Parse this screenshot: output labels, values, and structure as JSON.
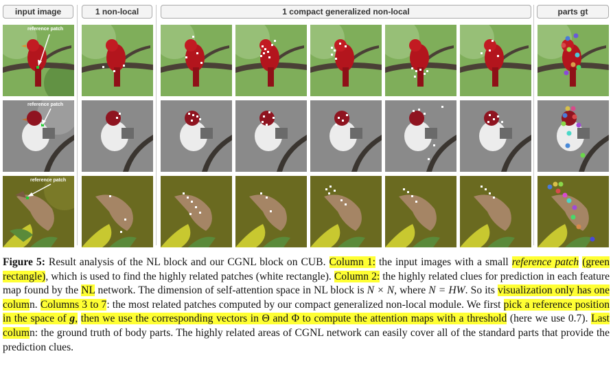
{
  "headers": {
    "input_image": "input image",
    "non_local": "1 non-local",
    "cgnl": "1 compact generalized non-local",
    "parts_gt": "parts gt"
  },
  "annotations": {
    "reference_patch": "reference patch"
  },
  "caption": {
    "figure_label": "Figure 5:",
    "s1": " Result analysis of the NL block and our CGNL block on CUB. ",
    "col1": "Column 1:",
    "s2": " the input images with a small ",
    "ref_patch": "reference patch",
    "s3": " ",
    "green_rect": "(green rectangle)",
    "s4": ", which is used to find the highly related patches (white rectangle). ",
    "col2": "Column 2:",
    "s5": " the highly related clues for prediction in each feature map found by the ",
    "nl": "NL",
    "s6": " network. The dimension of self-attention space in NL block is ",
    "nxn": "N × N",
    "s7": ", where ",
    "nhw": "N = HW",
    "s8": ". So its ",
    "vis_one": "visualization only has one colum",
    "s9": "n. ",
    "cols37": "Columns 3 to 7",
    "s10": ": the most related patches computed by our compact generalized non-local module. We first ",
    "pick": "pick a reference position in the space of ",
    "g": "g",
    "comma": ",",
    "s11": " ",
    "then_use": "then we use the corresponding vectors in Θ and Φ to compute the attention maps with a threshold",
    "s12": " (here we use 0.7). ",
    "last_col": "Last colum",
    "s13": "n: the ground truth of body parts. The highly related areas of CGNL network can easily cover all of the standard parts that provide the prediction clues."
  },
  "colors": {
    "highlight": "#ffff33",
    "cardinal": "#b3151d",
    "waxwing": "#a58565",
    "leaf_green": "#5a8a3a",
    "olive_bg": "#6a6a20",
    "gray_bg": "#8a8a8a",
    "reference_patch": "#22cc33"
  }
}
